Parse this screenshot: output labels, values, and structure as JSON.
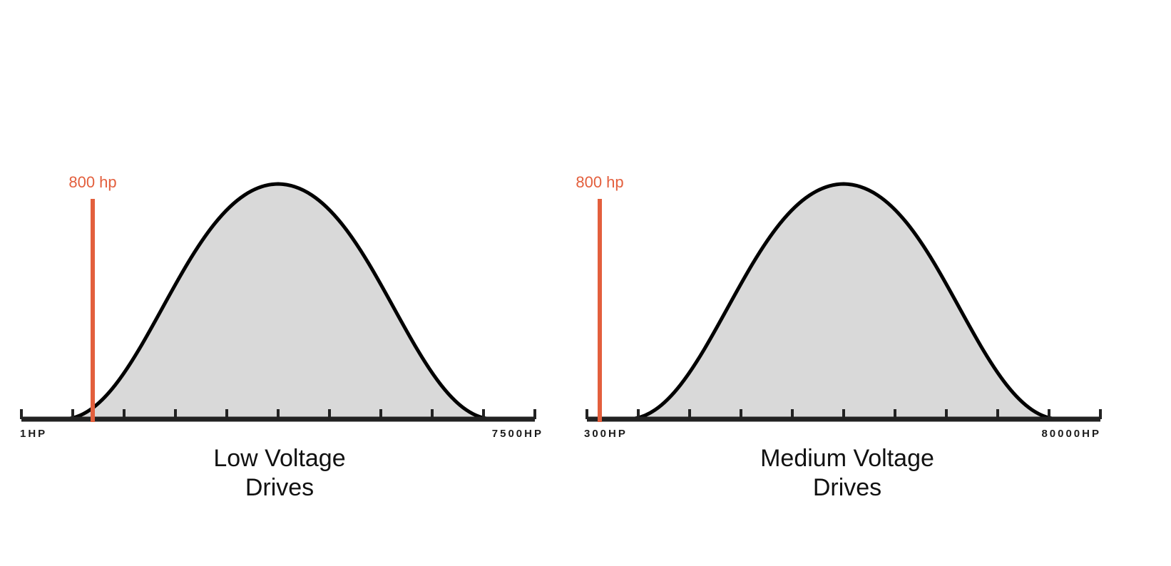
{
  "colors": {
    "curve_fill": "#d9d9d9",
    "curve_stroke": "#000000",
    "axis": "#222222",
    "marker": "#e35f3d"
  },
  "panels": [
    {
      "id": "low-voltage",
      "marker_label": "800 hp",
      "axis_min_label": "1HP",
      "axis_max_label": "7500HP",
      "caption_line1": "Low Voltage",
      "caption_line2": "Drives"
    },
    {
      "id": "medium-voltage",
      "marker_label": "800 hp",
      "axis_min_label": "300HP",
      "axis_max_label": "80000HP",
      "caption_line1": "Medium Voltage",
      "caption_line2": "Drives"
    }
  ]
}
